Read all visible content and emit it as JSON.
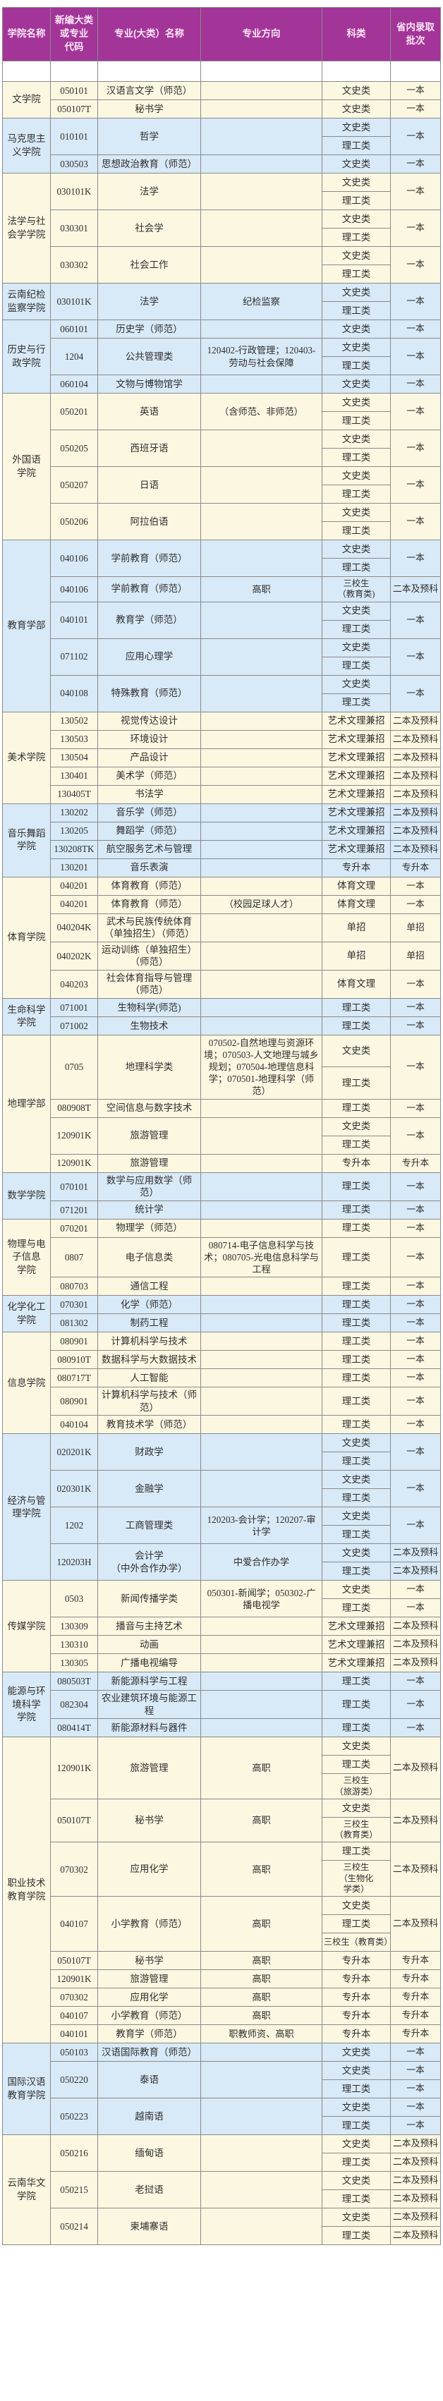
{
  "colors": {
    "header_bg": "#a33598",
    "header_fg": "#fae6f5",
    "group_tone_cream": "#fcf7e1",
    "group_tone_blue": "#d8e9f7",
    "border": "#8a8a8a",
    "text": "#2f2f2f"
  },
  "table": {
    "headers": [
      "学院名称",
      "新编大类\n或专业\n代码",
      "专业(大类）名称",
      "专业方向",
      "科类",
      "省内录取\n批次"
    ]
  },
  "groups": [
    {
      "college": "文学院",
      "tone": "cream",
      "majors": [
        {
          "code": "050101",
          "name": "汉语言文学（师范）",
          "dir": "",
          "kelei": [
            "文史类"
          ],
          "batch": "一本"
        },
        {
          "code": "050107T",
          "name": "秘书学",
          "dir": "",
          "kelei": [
            "文史类"
          ],
          "batch": "一本"
        }
      ]
    },
    {
      "college": "马克思主\n义学院",
      "tone": "blue",
      "majors": [
        {
          "code": "010101",
          "name": "哲学",
          "dir": "",
          "kelei": [
            "文史类",
            "理工类"
          ],
          "batch": "一本"
        },
        {
          "code": "030503",
          "name": "思想政治教育（师范）",
          "dir": "",
          "kelei": [
            "文史类"
          ],
          "batch": "一本"
        }
      ]
    },
    {
      "college": "法学与社\n会学学院",
      "tone": "cream",
      "majors": [
        {
          "code": "030101K",
          "name": "法学",
          "dir": "",
          "kelei": [
            "文史类",
            "理工类"
          ],
          "batch": "一本"
        },
        {
          "code": "030301",
          "name": "社会学",
          "dir": "",
          "kelei": [
            "文史类",
            "理工类"
          ],
          "batch": "一本"
        },
        {
          "code": "030302",
          "name": "社会工作",
          "dir": "",
          "kelei": [
            "文史类",
            "理工类"
          ],
          "batch": "一本"
        }
      ]
    },
    {
      "college": "云南纪检\n监察学院",
      "tone": "blue",
      "majors": [
        {
          "code": "030101K",
          "name": "法学",
          "dir": "纪检监察",
          "kelei": [
            "文史类",
            "理工类"
          ],
          "batch": "一本"
        }
      ]
    },
    {
      "college": "历史与行\n政学院",
      "tone": "blue",
      "majors": [
        {
          "code": "060101",
          "name": "历史学（师范）",
          "dir": "",
          "kelei": [
            "文史类"
          ],
          "batch": "一本"
        },
        {
          "code": "1204",
          "name": "公共管理类",
          "dir": "120402-行政管理；120403-劳动与社会保障",
          "kelei": [
            "文史类",
            "理工类"
          ],
          "batch": "一本"
        },
        {
          "code": "060104",
          "name": "文物与博物馆学",
          "dir": "",
          "kelei": [
            "文史类"
          ],
          "batch": "一本"
        }
      ]
    },
    {
      "college": "外国语\n学院",
      "tone": "cream",
      "majors": [
        {
          "code": "050201",
          "name": "英语",
          "dir": "（含师范、非师范）",
          "kelei": [
            "文史类",
            "理工类"
          ],
          "batch": "一本"
        },
        {
          "code": "050205",
          "name": "西班牙语",
          "dir": "",
          "kelei": [
            "文史类",
            "理工类"
          ],
          "batch": "一本"
        },
        {
          "code": "050207",
          "name": "日语",
          "dir": "",
          "kelei": [
            "文史类",
            "理工类"
          ],
          "batch": "一本"
        },
        {
          "code": "050206",
          "name": "阿拉伯语",
          "dir": "",
          "kelei": [
            "文史类",
            "理工类"
          ],
          "batch": "一本"
        }
      ]
    },
    {
      "college": "教育学部",
      "tone": "blue",
      "majors": [
        {
          "code": "040106",
          "name": "学前教育（师范）",
          "dir": "",
          "kelei": [
            "文史类",
            "理工类"
          ],
          "batch": "一本"
        },
        {
          "code": "040106",
          "name": "学前教育（师范）",
          "dir": "高职",
          "kelei": [
            "三校生\n（教育类)"
          ],
          "batch": "二本及预科"
        },
        {
          "code": "040101",
          "name": "教育学（师范）",
          "dir": "",
          "kelei": [
            "文史类",
            "理工类"
          ],
          "batch": "一本"
        },
        {
          "code": "071102",
          "name": "应用心理学",
          "dir": "",
          "kelei": [
            "文史类",
            "理工类"
          ],
          "batch": "一本"
        },
        {
          "code": "040108",
          "name": "特殊教育（师范）",
          "dir": "",
          "kelei": [
            "文史类",
            "理工类"
          ],
          "batch": "一本"
        }
      ]
    },
    {
      "college": "美术学院",
      "tone": "cream",
      "majors": [
        {
          "code": "130502",
          "name": "视觉传达设计",
          "dir": "",
          "kelei": [
            "艺术文理兼招"
          ],
          "batch": "二本及预科"
        },
        {
          "code": "130503",
          "name": "环境设计",
          "dir": "",
          "kelei": [
            "艺术文理兼招"
          ],
          "batch": "二本及预科"
        },
        {
          "code": "130504",
          "name": "产品设计",
          "dir": "",
          "kelei": [
            "艺术文理兼招"
          ],
          "batch": "二本及预科"
        },
        {
          "code": "130401",
          "name": "美术学（师范）",
          "dir": "",
          "kelei": [
            "艺术文理兼招"
          ],
          "batch": "二本及预科"
        },
        {
          "code": "130405T",
          "name": "书法学",
          "dir": "",
          "kelei": [
            "艺术文理兼招"
          ],
          "batch": "二本及预科"
        }
      ]
    },
    {
      "college": "音乐舞蹈\n学院",
      "tone": "blue",
      "majors": [
        {
          "code": "130202",
          "name": "音乐学（师范）",
          "dir": "",
          "kelei": [
            "艺术文理兼招"
          ],
          "batch": "二本及预科"
        },
        {
          "code": "130205",
          "name": "舞蹈学（师范）",
          "dir": "",
          "kelei": [
            "艺术文理兼招"
          ],
          "batch": "二本及预科"
        },
        {
          "code": "130208TK",
          "name": "航空服务艺术与管理",
          "dir": "",
          "kelei": [
            "艺术文理兼招"
          ],
          "batch": "二本及预科"
        },
        {
          "code": "130201",
          "name": "音乐表演",
          "dir": "",
          "kelei": [
            "专升本"
          ],
          "batch": "专升本"
        }
      ]
    },
    {
      "college": "体育学院",
      "tone": "cream",
      "majors": [
        {
          "code": "040201",
          "name": "体育教育（师范）",
          "dir": "",
          "kelei": [
            "体育文理"
          ],
          "batch": "一本"
        },
        {
          "code": "040201",
          "name": "体育教育（师范）",
          "dir": "（校园足球人才）",
          "kelei": [
            "体育文理"
          ],
          "batch": "一本"
        },
        {
          "code": "040204K",
          "name": "武术与民族传统体育（单独招生）（师范）",
          "dir": "",
          "kelei": [
            "单招"
          ],
          "batch": "单招"
        },
        {
          "code": "040202K",
          "name": "运动训练（单独招生）（师范）",
          "dir": "",
          "kelei": [
            "单招"
          ],
          "batch": "单招"
        },
        {
          "code": "040203",
          "name": "社会体育指导与管理（师范）",
          "dir": "",
          "kelei": [
            "体育文理"
          ],
          "batch": "一本"
        }
      ]
    },
    {
      "college": "生命科学\n学院",
      "tone": "blue",
      "majors": [
        {
          "code": "071001",
          "name": "生物科学(师范)",
          "dir": "",
          "kelei": [
            "理工类"
          ],
          "batch": "一本"
        },
        {
          "code": "071002",
          "name": "生物技术",
          "dir": "",
          "kelei": [
            "理工类"
          ],
          "batch": "一本"
        }
      ]
    },
    {
      "college": "地理学部",
      "tone": "cream",
      "majors": [
        {
          "code": "0705",
          "name": "地理科学类",
          "dir": "070502-自然地理与资源环境；070503-人文地理与城乡规划；070504-地理信息科学；070501-地理科学（师范）",
          "kelei": [
            "文史类",
            "理工类"
          ],
          "batch": "一本"
        },
        {
          "code": "080908T",
          "name": "空间信息与数字技术",
          "dir": "",
          "kelei": [
            "理工类"
          ],
          "batch": "一本"
        },
        {
          "code": "120901K",
          "name": "旅游管理",
          "dir": "",
          "kelei": [
            "文史类",
            "理工类"
          ],
          "batch": "一本"
        },
        {
          "code": "120901K",
          "name": "旅游管理",
          "dir": "",
          "kelei": [
            "专升本"
          ],
          "batch": "专升本"
        }
      ]
    },
    {
      "college": "数学学院",
      "tone": "blue",
      "majors": [
        {
          "code": "070101",
          "name": "数学与应用数学（师范）",
          "dir": "",
          "kelei": [
            "理工类"
          ],
          "batch": "一本"
        },
        {
          "code": "071201",
          "name": "统计学",
          "dir": "",
          "kelei": [
            "理工类"
          ],
          "batch": "一本"
        }
      ]
    },
    {
      "college": "物理与电\n子信息\n学院",
      "tone": "cream",
      "majors": [
        {
          "code": "070201",
          "name": "物理学（师范）",
          "dir": "",
          "kelei": [
            "理工类"
          ],
          "batch": "一本"
        },
        {
          "code": "0807",
          "name": "电子信息类",
          "dir": "080714-电子信息科学与技术；080705-光电信息科学与工程",
          "kelei": [
            "理工类"
          ],
          "batch": "一本"
        },
        {
          "code": "080703",
          "name": "通信工程",
          "dir": "",
          "kelei": [
            "理工类"
          ],
          "batch": "一本"
        }
      ]
    },
    {
      "college": "化学化工\n学院",
      "tone": "blue",
      "majors": [
        {
          "code": "070301",
          "name": "化学（师范）",
          "dir": "",
          "kelei": [
            "理工类"
          ],
          "batch": "一本"
        },
        {
          "code": "081302",
          "name": "制药工程",
          "dir": "",
          "kelei": [
            "理工类"
          ],
          "batch": "一本"
        }
      ]
    },
    {
      "college": "信息学院",
      "tone": "cream",
      "majors": [
        {
          "code": "080901",
          "name": "计算机科学与技术",
          "dir": "",
          "kelei": [
            "理工类"
          ],
          "batch": "一本"
        },
        {
          "code": "080910T",
          "name": "数据科学与大数据技术",
          "dir": "",
          "kelei": [
            "理工类"
          ],
          "batch": "一本"
        },
        {
          "code": "080717T",
          "name": "人工智能",
          "dir": "",
          "kelei": [
            "理工类"
          ],
          "batch": "一本"
        },
        {
          "code": "080901",
          "name": "计算机科学与技术（师范）",
          "dir": "",
          "kelei": [
            "理工类"
          ],
          "batch": "一本"
        },
        {
          "code": "040104",
          "name": "教育技术学（师范）",
          "dir": "",
          "kelei": [
            "理工类"
          ],
          "batch": "一本"
        }
      ]
    },
    {
      "college": "经济与管\n理学院",
      "tone": "blue",
      "majors": [
        {
          "code": "020201K",
          "name": "财政学",
          "dir": "",
          "kelei": [
            "文史类",
            "理工类"
          ],
          "batch": "一本"
        },
        {
          "code": "020301K",
          "name": "金融学",
          "dir": "",
          "kelei": [
            "文史类",
            "理工类"
          ],
          "batch": "一本"
        },
        {
          "code": "1202",
          "name": "工商管理类",
          "dir": "120203-会计学；120207-审计学",
          "kelei": [
            "文史类",
            "理工类"
          ],
          "batch": "一本"
        },
        {
          "code": "120203H",
          "name": "会计学\n（中外合作办学）",
          "dir": "中爱合作办学",
          "kelei": [
            "文史类",
            "理工类"
          ],
          "batches": [
            "二本及预科",
            "二本及预科"
          ]
        }
      ]
    },
    {
      "college": "传媒学院",
      "tone": "cream",
      "majors": [
        {
          "code": "0503",
          "name": "新闻传播学类",
          "dir": "050301-新闻学；050302-广播电视学",
          "kelei": [
            "文史类",
            "理工类"
          ],
          "batches": [
            "一本",
            "一本"
          ]
        },
        {
          "code": "130309",
          "name": "播音与主持艺术",
          "dir": "",
          "kelei": [
            "艺术文理兼招"
          ],
          "batch": "二本及预科"
        },
        {
          "code": "130310",
          "name": "动画",
          "dir": "",
          "kelei": [
            "艺术文理兼招"
          ],
          "batch": "二本及预科"
        },
        {
          "code": "130305",
          "name": "广播电视编导",
          "dir": "",
          "kelei": [
            "艺术文理兼招"
          ],
          "batch": "二本及预科"
        }
      ]
    },
    {
      "college": "能源与环\n境科学\n学院",
      "tone": "blue",
      "majors": [
        {
          "code": "080503T",
          "name": "新能源科学与工程",
          "dir": "",
          "kelei": [
            "理工类"
          ],
          "batch": "一本"
        },
        {
          "code": "082304",
          "name": "农业建筑环境与能源工程",
          "dir": "",
          "kelei": [
            "理工类"
          ],
          "batch": "一本"
        },
        {
          "code": "080414T",
          "name": "新能源材料与器件",
          "dir": "",
          "kelei": [
            "理工类"
          ],
          "batch": "一本"
        }
      ]
    },
    {
      "college": "职业技术\n教育学院",
      "tone": "cream",
      "majors": [
        {
          "code": "120901K",
          "name": "旅游管理",
          "dir": "高职",
          "kelei": [
            "文史类",
            "理工类",
            "三校生\n（旅游类）"
          ],
          "batch": "二本及预科"
        },
        {
          "code": "050107T",
          "name": "秘书学",
          "dir": "高职",
          "kelei": [
            "文史类",
            "三校生\n（教育类）"
          ],
          "batch": "二本及预科"
        },
        {
          "code": "070302",
          "name": "应用化学",
          "dir": "高职",
          "kelei": [
            "理工类",
            "三校生\n（生物化\n学类）"
          ],
          "batch": "二本及预科"
        },
        {
          "code": "040107",
          "name": "小学教育（师范）",
          "dir": "高职",
          "kelei": [
            "文史类",
            "理工类",
            "三校生（教育类）"
          ],
          "batch": "二本及预科"
        },
        {
          "code": "050107T",
          "name": "秘书学",
          "dir": "高职",
          "kelei": [
            "专升本"
          ],
          "batch": "专升本"
        },
        {
          "code": "120901K",
          "name": "旅游管理",
          "dir": "高职",
          "kelei": [
            "专升本"
          ],
          "batch": "专升本"
        },
        {
          "code": "070302",
          "name": "应用化学",
          "dir": "高职",
          "kelei": [
            "专升本"
          ],
          "batch": "专升本"
        },
        {
          "code": "040107",
          "name": "小学教育（师范）",
          "dir": "高职",
          "kelei": [
            "专升本"
          ],
          "batch": "专升本"
        },
        {
          "code": "040101",
          "name": "教育学（师范）",
          "dir": "职教师资、高职",
          "kelei": [
            "专升本"
          ],
          "batch": "专升本"
        }
      ]
    },
    {
      "college": "国际汉语\n教育学院",
      "tone": "blue",
      "majors": [
        {
          "code": "050103",
          "name": "汉语国际教育（师范）",
          "dir": "",
          "kelei": [
            "文史类"
          ],
          "batch": "一本"
        },
        {
          "code": "050220",
          "name": "泰语",
          "dir": "",
          "kelei": [
            "文史类",
            "理工类"
          ],
          "batches": [
            "一本",
            "一本"
          ]
        },
        {
          "code": "050223",
          "name": "越南语",
          "dir": "",
          "kelei": [
            "文史类",
            "理工类"
          ],
          "batches": [
            "一本",
            "一本"
          ]
        }
      ]
    },
    {
      "college": "云南华文\n学院",
      "tone": "cream",
      "majors": [
        {
          "code": "050216",
          "name": "缅甸语",
          "dir": "",
          "kelei": [
            "文史类",
            "理工类"
          ],
          "batches": [
            "二本及预科",
            "二本及预科"
          ]
        },
        {
          "code": "050215",
          "name": "老挝语",
          "dir": "",
          "kelei": [
            "文史类",
            "理工类"
          ],
          "batches": [
            "二本及预科",
            "二本及预科"
          ]
        },
        {
          "code": "050214",
          "name": "柬埔寨语",
          "dir": "",
          "kelei": [
            "文史类",
            "理工类"
          ],
          "batches": [
            "二本及预科",
            "二本及预科"
          ]
        }
      ]
    }
  ]
}
